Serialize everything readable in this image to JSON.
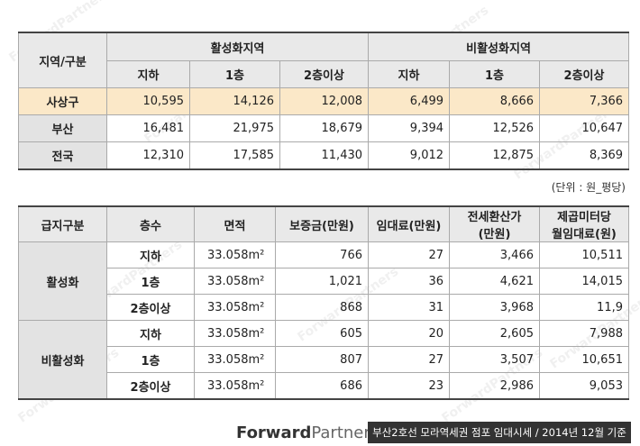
{
  "watermark": "ForwardPartners",
  "table1": {
    "corner": "지역/구분",
    "groups": [
      "활성화지역",
      "비활성화지역"
    ],
    "sub": [
      "지하",
      "1층",
      "2층이상",
      "지하",
      "1층",
      "2층이상"
    ],
    "rows": [
      {
        "label": "사상구",
        "values": [
          "10,595",
          "14,126",
          "12,008",
          "6,499",
          "8,666",
          "7,366"
        ]
      },
      {
        "label": "부산",
        "values": [
          "16,481",
          "21,975",
          "18,679",
          "9,394",
          "12,526",
          "10,647"
        ]
      },
      {
        "label": "전국",
        "values": [
          "12,310",
          "17,585",
          "11,430",
          "9,012",
          "12,875",
          "8,369"
        ]
      }
    ]
  },
  "unit_note": "(단위 : 원_평당)",
  "table2": {
    "headers": [
      "급지구분",
      "층수",
      "면적",
      "보증금(만원)",
      "임대료(만원)",
      "전세환산가\n(만원)",
      "제곱미터당\n월임대료(원)"
    ],
    "groups": [
      {
        "name": "활성화",
        "rows": [
          [
            "지하",
            "33.058m²",
            "766",
            "27",
            "3,466",
            "10,511"
          ],
          [
            "1층",
            "33.058m²",
            "1,021",
            "36",
            "4,621",
            "14,015"
          ],
          [
            "2층이상",
            "33.058m²",
            "868",
            "31",
            "3,968",
            "11,9"
          ]
        ]
      },
      {
        "name": "비활성화",
        "rows": [
          [
            "지하",
            "33.058m²",
            "605",
            "20",
            "2,605",
            "7,988"
          ],
          [
            "1층",
            "33.058m²",
            "807",
            "27",
            "3,507",
            "10,651"
          ],
          [
            "2층이상",
            "33.058m²",
            "686",
            "23",
            "2,986",
            "9,053"
          ]
        ]
      }
    ]
  },
  "footer": {
    "logo_bold": "Forward",
    "logo_light": "Partners",
    "caption": "부산2호선 모라역세권 점포 임대시세 / 2014년 12월 기준"
  }
}
